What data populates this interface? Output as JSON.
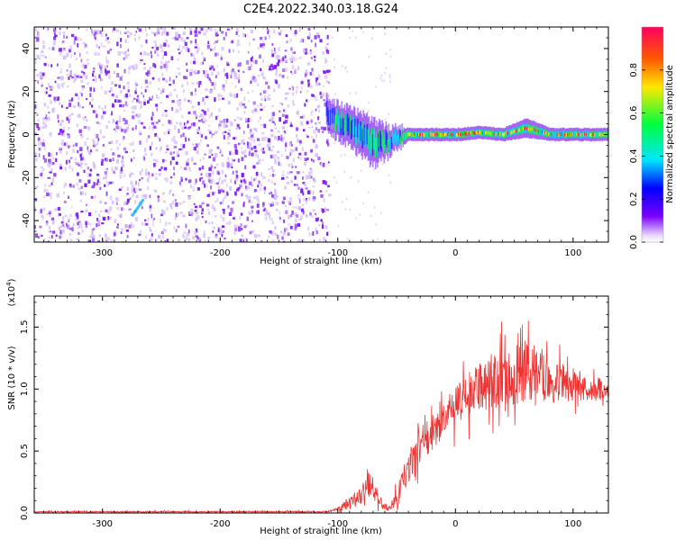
{
  "figure_title": "C2E4.2022.340.03.18.G24",
  "colors": {
    "signal": "#ee3333",
    "scatter": "#7a1cf0",
    "scatter_light": "#d6c2f7",
    "axis": "#000000"
  },
  "chart_data": [
    {
      "type": "heatmap",
      "title": "C2E4.2022.340.03.18.G24",
      "xlabel": "Height of straight line (km)",
      "ylabel": "Frequency (Hz)",
      "xlim": [
        -358,
        130
      ],
      "ylim": [
        -50,
        50
      ],
      "xticks": [
        -300,
        -200,
        -100,
        0,
        100
      ],
      "yticks": [
        -40,
        -20,
        0,
        20,
        40
      ],
      "noise_region_x": [
        -358,
        -108
      ],
      "trace": {
        "description": "narrow band centred near 0 Hz",
        "x": [
          -110,
          -90,
          -70,
          -55,
          -40,
          -20,
          0,
          20,
          40,
          60,
          80,
          100,
          130
        ],
        "freq": [
          10,
          3,
          -4,
          -3,
          0,
          0,
          0,
          1,
          0,
          3,
          0,
          0,
          0
        ],
        "halfwidth": [
          5,
          6,
          7,
          4,
          2,
          2,
          2,
          2,
          2,
          3,
          2,
          2,
          2
        ]
      },
      "colorbar": {
        "label": "Normalized spectral amplitude",
        "range": [
          0.0,
          1.0
        ],
        "ticks": [
          0.0,
          0.2,
          0.4,
          0.6,
          0.8
        ],
        "tick_labels": [
          "0.0",
          "0.2",
          "0.4",
          "0.6",
          "0.8"
        ]
      }
    },
    {
      "type": "line",
      "xlabel": "Height of straight line (km)",
      "ylabel": "SNR (10 * v/v)",
      "y_multiplier": "(x10",
      "y_exponent": "4",
      "y_multiplier_close": ")",
      "xlim": [
        -358,
        130
      ],
      "ylim": [
        0.0,
        1.75
      ],
      "xticks": [
        -300,
        -200,
        -100,
        0,
        100
      ],
      "yticks": [
        0.0,
        0.5,
        1.0,
        1.5
      ],
      "ytick_labels": [
        "0.0",
        "0.5",
        "1.0",
        "1.5"
      ],
      "series": [
        {
          "name": "SNR",
          "x": [
            -358,
            -300,
            -200,
            -110,
            -100,
            -90,
            -80,
            -75,
            -70,
            -65,
            -60,
            -55,
            -50,
            -45,
            -40,
            -35,
            -30,
            -20,
            -10,
            0,
            10,
            20,
            30,
            40,
            50,
            60,
            70,
            80,
            90,
            100,
            110,
            120,
            130
          ],
          "y": [
            0.01,
            0.01,
            0.01,
            0.01,
            0.03,
            0.08,
            0.15,
            0.25,
            0.2,
            0.1,
            0.05,
            0.03,
            0.12,
            0.25,
            0.35,
            0.45,
            0.55,
            0.65,
            0.75,
            0.85,
            0.95,
            1.0,
            1.05,
            1.1,
            1.12,
            1.15,
            1.12,
            1.1,
            1.05,
            1.02,
            1.0,
            1.0,
            1.0
          ],
          "noise": [
            0.005,
            0.005,
            0.005,
            0.005,
            0.02,
            0.05,
            0.08,
            0.12,
            0.1,
            0.05,
            0.03,
            0.02,
            0.08,
            0.1,
            0.12,
            0.13,
            0.14,
            0.15,
            0.16,
            0.16,
            0.18,
            0.2,
            0.22,
            0.25,
            0.25,
            0.25,
            0.22,
            0.2,
            0.15,
            0.12,
            0.1,
            0.1,
            0.1
          ]
        }
      ]
    }
  ]
}
